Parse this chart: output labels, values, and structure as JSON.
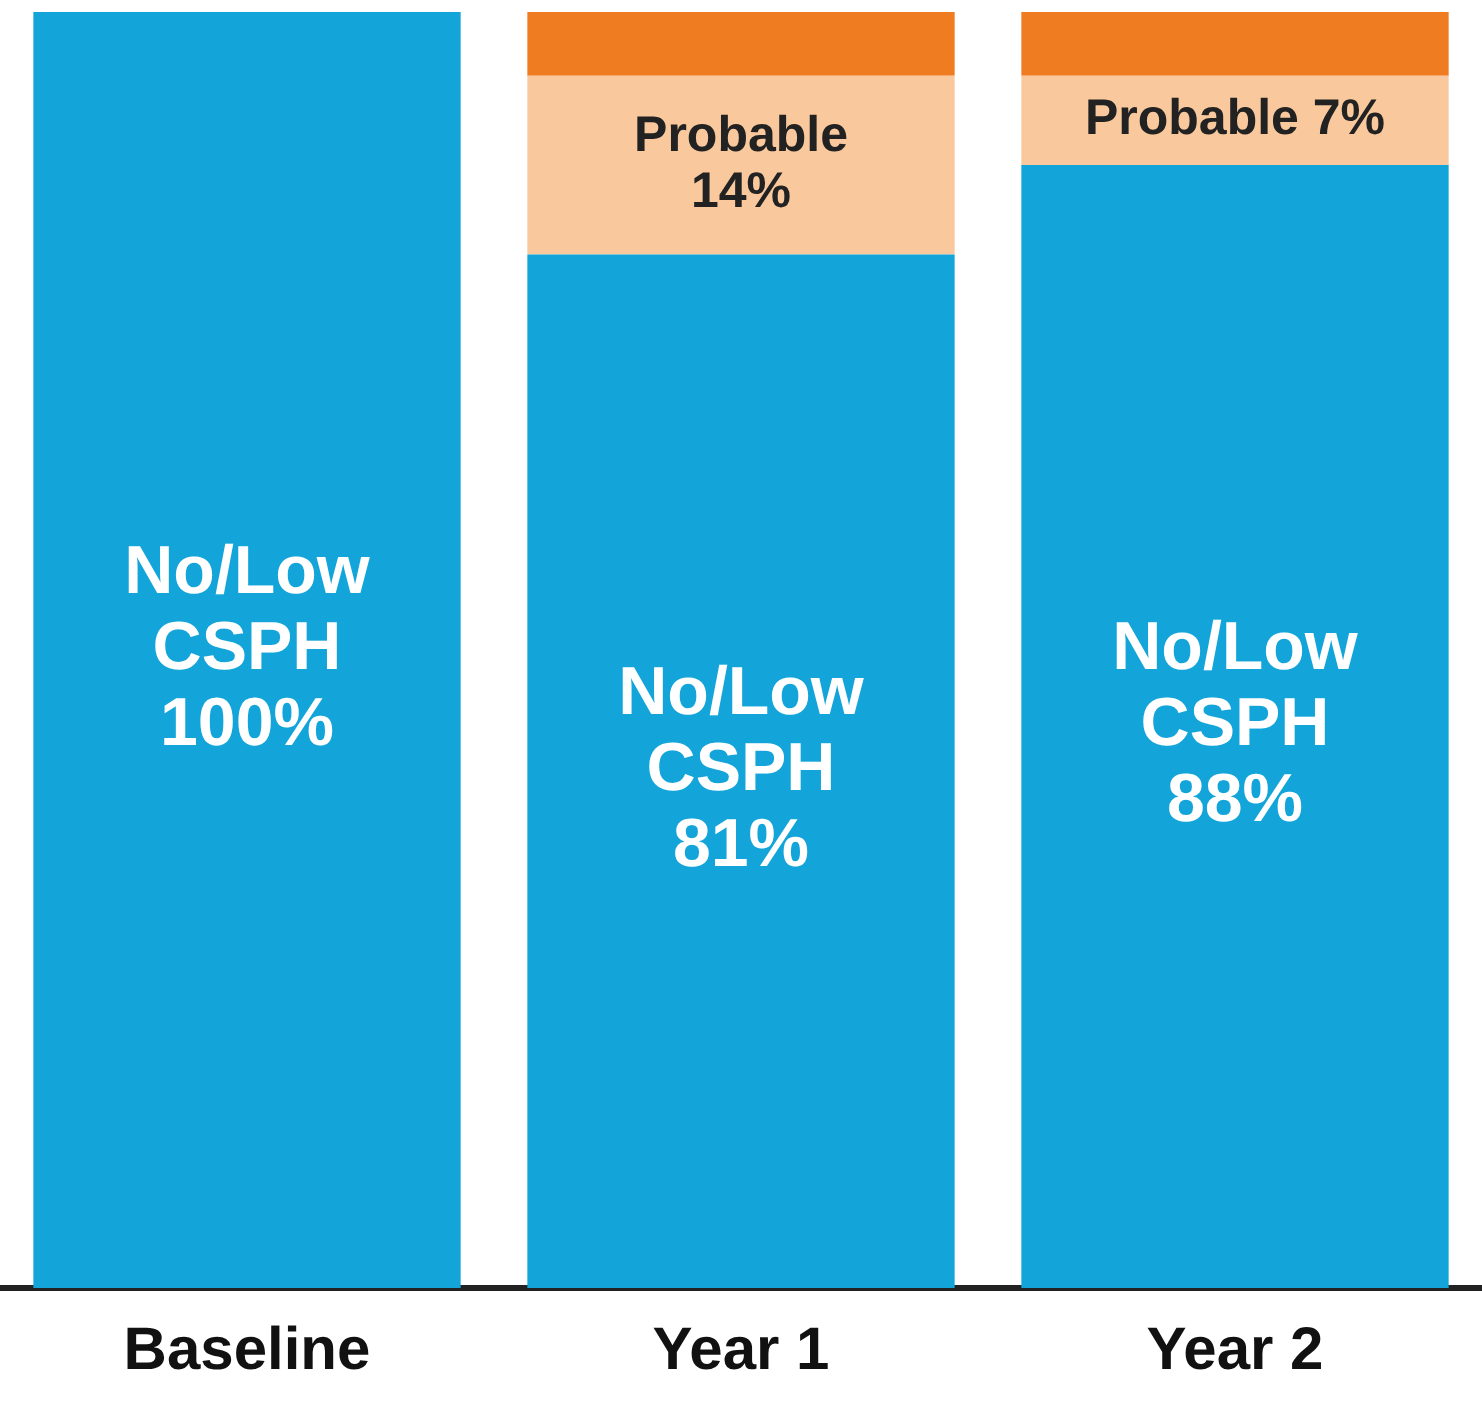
{
  "chart_data": {
    "type": "bar",
    "stacked": true,
    "categories": [
      "Baseline",
      "Year 1",
      "Year 2"
    ],
    "ylim": [
      0,
      100
    ],
    "tick_labels": "x",
    "legend": false,
    "series": [
      {
        "name": "No/Low CSPH",
        "color": "#13a5da",
        "values": [
          100,
          81,
          88
        ],
        "value_labels": [
          "100%",
          "81%",
          "88%"
        ]
      },
      {
        "name": "Probable",
        "color": "#f9c89d",
        "values": [
          0,
          14,
          7
        ],
        "value_labels": [
          null,
          "14%",
          "7%"
        ]
      },
      {
        "color": "#f07c22",
        "values": [
          0,
          5,
          5
        ]
      }
    ]
  }
}
